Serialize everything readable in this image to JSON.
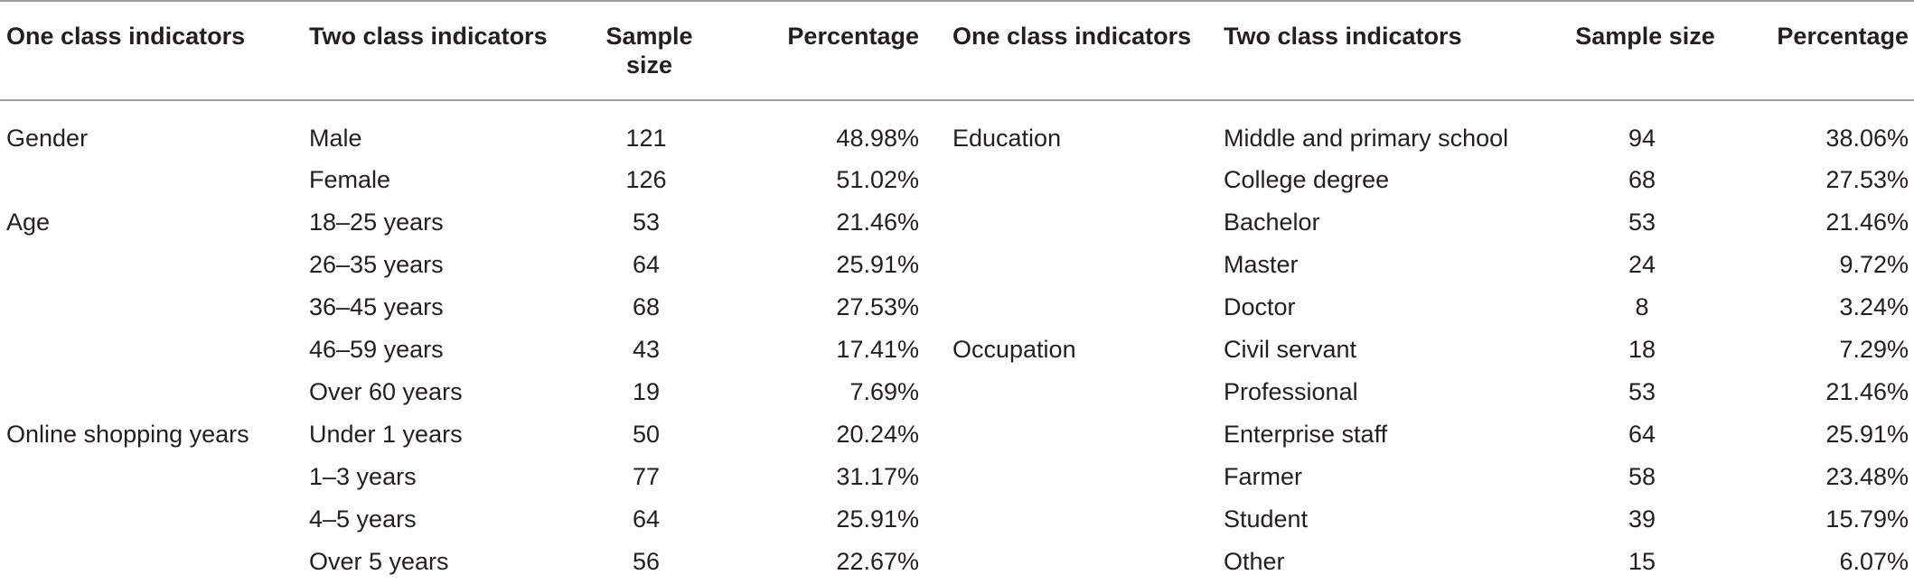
{
  "headers": [
    "One class indicators",
    "Two class indicators",
    "Sample size",
    "Percentage",
    "One class indicators",
    "Two class indicators",
    "Sample size",
    "Percentage"
  ],
  "rows": [
    [
      "Gender",
      "Male",
      "121",
      "48.98%",
      "Education",
      "Middle and primary school",
      "94",
      "38.06%"
    ],
    [
      "",
      "Female",
      "126",
      "51.02%",
      "",
      "College degree",
      "68",
      "27.53%"
    ],
    [
      "Age",
      "18–25 years",
      "53",
      "21.46%",
      "",
      "Bachelor",
      "53",
      "21.46%"
    ],
    [
      "",
      "26–35 years",
      "64",
      "25.91%",
      "",
      "Master",
      "24",
      "9.72%"
    ],
    [
      "",
      "36–45 years",
      "68",
      "27.53%",
      "",
      "Doctor",
      "8",
      "3.24%"
    ],
    [
      "",
      "46–59 years",
      "43",
      "17.41%",
      "Occupation",
      "Civil servant",
      "18",
      "7.29%"
    ],
    [
      "",
      "Over 60 years",
      "19",
      "7.69%",
      "",
      "Professional",
      "53",
      "21.46%"
    ],
    [
      "Online shopping years",
      "Under 1 years",
      "50",
      "20.24%",
      "",
      "Enterprise staff",
      "64",
      "25.91%"
    ],
    [
      "",
      "1–3 years",
      "77",
      "31.17%",
      "",
      "Farmer",
      "58",
      "23.48%"
    ],
    [
      "",
      "4–5 years",
      "64",
      "25.91%",
      "",
      "Student",
      "39",
      "15.79%"
    ],
    [
      "",
      "Over 5 years",
      "56",
      "22.67%",
      "",
      "Other",
      "15",
      "6.07%"
    ]
  ]
}
